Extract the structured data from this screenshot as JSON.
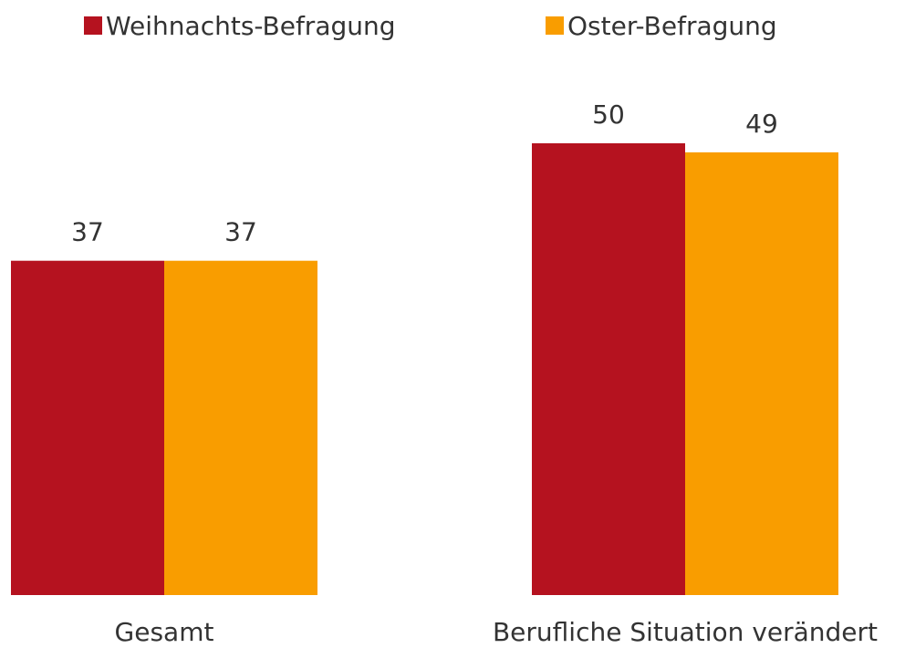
{
  "chart_data": {
    "type": "bar",
    "categories": [
      "Gesamt",
      "Berufliche Situation verändert"
    ],
    "series": [
      {
        "name": "Weihnachts-Befragung",
        "color": "#b5121f",
        "values": [
          37,
          50
        ]
      },
      {
        "name": "Oster-Befragung",
        "color": "#f99d00",
        "values": [
          37,
          49
        ]
      }
    ]
  }
}
